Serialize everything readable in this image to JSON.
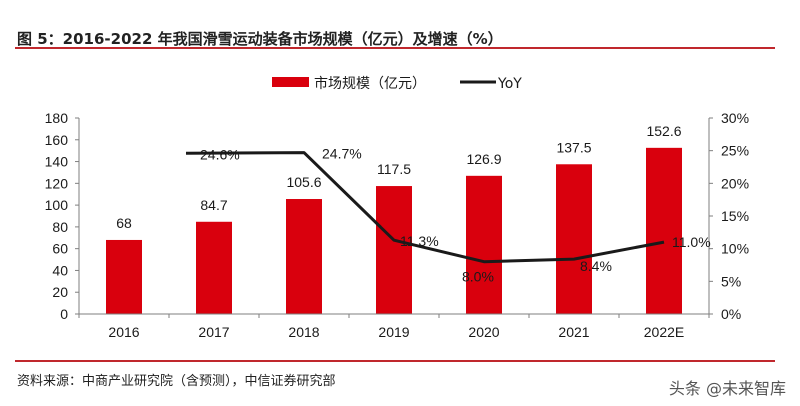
{
  "header": {
    "title": "图 5：2016-2022 年我国滑雪运动装备市场规模（亿元）及增速（%）"
  },
  "footer": {
    "source": "资料来源：中商产业研究院（含预测），中信证券研究部",
    "watermark": "头条 @未来智库"
  },
  "colors": {
    "bar": "#d9000d",
    "line": "#1a1a1a",
    "rule": "#c0282d",
    "axis": "#7f7f7f"
  },
  "chart_data": {
    "type": "bar",
    "title": "2016-2022 年我国滑雪运动装备市场规模（亿元）及增速（%）",
    "categories": [
      "2016",
      "2017",
      "2018",
      "2019",
      "2020",
      "2021",
      "2022E"
    ],
    "series": [
      {
        "name": "市场规模（亿元）",
        "type": "bar",
        "axis": "left",
        "values": [
          68,
          84.7,
          105.6,
          117.5,
          126.9,
          137.5,
          152.6
        ],
        "labels": [
          "68",
          "84.7",
          "105.6",
          "117.5",
          "126.9",
          "137.5",
          "152.6"
        ]
      },
      {
        "name": "YoY",
        "type": "line",
        "axis": "right",
        "values": [
          null,
          24.6,
          24.7,
          11.3,
          8.0,
          8.4,
          11.0
        ],
        "labels": [
          "",
          "24.6%",
          "24.7%",
          "11.3%",
          "8.0%",
          "8.4%",
          "11.0%"
        ]
      }
    ],
    "y_left": {
      "ylim": [
        0,
        180
      ],
      "ticks": [
        0,
        20,
        40,
        60,
        80,
        100,
        120,
        140,
        160,
        180
      ],
      "tick_labels": [
        "0",
        "20",
        "40",
        "60",
        "80",
        "100",
        "120",
        "140",
        "160",
        "180"
      ]
    },
    "y_right": {
      "ylim": [
        0,
        30
      ],
      "ticks": [
        0,
        5,
        10,
        15,
        20,
        25,
        30
      ],
      "tick_labels": [
        "0%",
        "5%",
        "10%",
        "15%",
        "20%",
        "25%",
        "30%"
      ]
    },
    "xlabel": "",
    "ylabel": "",
    "grid": false,
    "legend": {
      "position": "top-center",
      "entries": [
        "市场规模（亿元）",
        "YoY"
      ]
    }
  }
}
